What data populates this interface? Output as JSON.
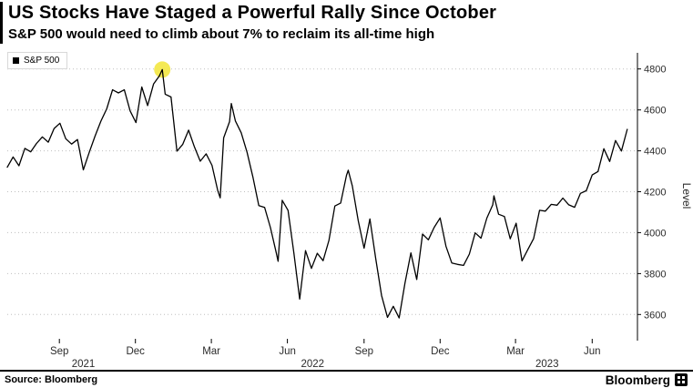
{
  "header": {
    "title": "US Stocks Have Staged a Powerful Rally Since October",
    "subtitle": "S&P 500 would need to climb about 7% to reclaim its all-time high"
  },
  "legend": {
    "label": "S&P 500",
    "swatch_color": "#000000"
  },
  "footer": {
    "source": "Source: Bloomberg",
    "brand": "Bloomberg"
  },
  "colors": {
    "background": "#ffffff",
    "line": "#000000",
    "grid": "#bfbfbf",
    "axis": "#000000",
    "tick_text": "#2b2b2b",
    "highlight": "#f3e84b"
  },
  "chart_data": {
    "type": "line",
    "title": "US Stocks Have Staged a Powerful Rally Since October",
    "subtitle": "S&P 500 would need to climb about 7% to reclaim its all-time high",
    "ylabel": "Level",
    "x_unit": "weeks since Jul 2021",
    "xlim": [
      0,
      106.5
    ],
    "ylim": [
      3490,
      4870
    ],
    "y_ticks": [
      3600,
      3800,
      4000,
      4200,
      4400,
      4600,
      4800
    ],
    "x_ticks": [
      {
        "pos": 8.9,
        "label": "Sep"
      },
      {
        "pos": 21.9,
        "label": "Dec"
      },
      {
        "pos": 34.9,
        "label": "Mar"
      },
      {
        "pos": 47.9,
        "label": "Jun"
      },
      {
        "pos": 61.0,
        "label": "Sep"
      },
      {
        "pos": 74.0,
        "label": "Dec"
      },
      {
        "pos": 86.9,
        "label": "Mar"
      },
      {
        "pos": 100.0,
        "label": "Jun"
      }
    ],
    "year_labels": [
      {
        "pos": 13.0,
        "label": "2021"
      },
      {
        "pos": 52.2,
        "label": "2022"
      },
      {
        "pos": 92.3,
        "label": "2023"
      }
    ],
    "grid": "dotted-horizontal",
    "legend_position": "top-left",
    "axis_side": "right",
    "highlight_marker": {
      "x": 26.5,
      "value": 4797,
      "meaning": "all-time high"
    },
    "series": [
      {
        "name": "S&P 500",
        "x": [
          0,
          1,
          2,
          3,
          4,
          5,
          6,
          7,
          8,
          9,
          10,
          11,
          12,
          13,
          14,
          15,
          16,
          17,
          18,
          19,
          20,
          21,
          22,
          23,
          24,
          25,
          26,
          26.5,
          27,
          28,
          29,
          30,
          31,
          32,
          33,
          34,
          35,
          36,
          36.4,
          37,
          38,
          38.3,
          39,
          40,
          41,
          42,
          43,
          44,
          45,
          46,
          46.3,
          47,
          48,
          49,
          50,
          51,
          52,
          53,
          54,
          55,
          56,
          57,
          58,
          58.3,
          59,
          60,
          61,
          62,
          63,
          64,
          65,
          66,
          67,
          68,
          69,
          70,
          71,
          72,
          73,
          74,
          75,
          76,
          77,
          78,
          79,
          80,
          81,
          82,
          83,
          83.2,
          84,
          85,
          86,
          87,
          88,
          89,
          90,
          91,
          92,
          93,
          94,
          95,
          96,
          97,
          98,
          99,
          100,
          101,
          102,
          103,
          104,
          105,
          106
        ],
        "values": [
          4320,
          4370,
          4327,
          4412,
          4395,
          4436,
          4468,
          4442,
          4509,
          4535,
          4459,
          4433,
          4455,
          4307,
          4391,
          4471,
          4545,
          4605,
          4698,
          4683,
          4698,
          4595,
          4538,
          4712,
          4621,
          4726,
          4766,
          4797,
          4677,
          4663,
          4398,
          4432,
          4501,
          4419,
          4349,
          4385,
          4329,
          4204,
          4170,
          4463,
          4543,
          4631,
          4546,
          4488,
          4393,
          4272,
          4132,
          4123,
          4024,
          3901,
          3860,
          4158,
          4109,
          3901,
          3675,
          3912,
          3825,
          3899,
          3863,
          3962,
          4130,
          4145,
          4280,
          4305,
          4228,
          4058,
          3924,
          4067,
          3873,
          3693,
          3586,
          3640,
          3583,
          3753,
          3901,
          3771,
          3993,
          3965,
          4026,
          4072,
          3934,
          3852,
          3845,
          3840,
          3895,
          3999,
          3973,
          4071,
          4136,
          4180,
          4090,
          4079,
          3970,
          4046,
          3862,
          3917,
          3971,
          4109,
          4105,
          4138,
          4134,
          4169,
          4136,
          4124,
          4192,
          4205,
          4282,
          4299,
          4410,
          4348,
          4450,
          4399,
          4505
        ]
      }
    ]
  }
}
